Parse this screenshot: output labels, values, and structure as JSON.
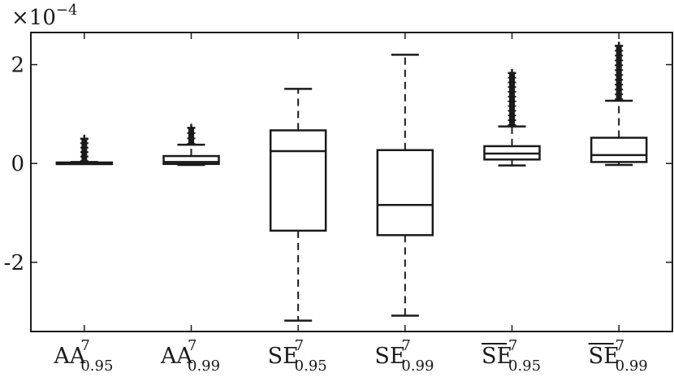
{
  "chart_data": {
    "type": "box",
    "scale_label": "×10",
    "scale_exponent": "−4",
    "ylim": [
      -3.4,
      2.65
    ],
    "yticks": [
      {
        "value": 2,
        "label": "2"
      },
      {
        "value": 0,
        "label": "0"
      },
      {
        "value": -2,
        "label": "-2"
      }
    ],
    "categories": [
      {
        "base": "AA",
        "sup": "7",
        "sub": "0.95",
        "overline": false
      },
      {
        "base": "AA",
        "sup": "7",
        "sub": "0.99",
        "overline": false
      },
      {
        "base": "SE",
        "sup": "7",
        "sub": "0.95",
        "overline": false
      },
      {
        "base": "SE",
        "sup": "7",
        "sub": "0.99",
        "overline": false
      },
      {
        "base": "SE",
        "sup": "7",
        "sub": "0.95",
        "overline": true
      },
      {
        "base": "SE",
        "sup": "7",
        "sub": "0.99",
        "overline": true
      }
    ],
    "boxes": [
      {
        "whisker_low": 0.0,
        "q1": 0.0,
        "median": 0.01,
        "q3": 0.02,
        "whisker_high": 0.03,
        "outlier_low": 0.05,
        "outlier_high": 0.5
      },
      {
        "whisker_low": -0.03,
        "q1": -0.01,
        "median": 0.03,
        "q3": 0.15,
        "whisker_high": 0.38,
        "outlier_low": 0.4,
        "outlier_high": 0.72
      },
      {
        "whisker_low": -3.18,
        "q1": -1.36,
        "median": 0.25,
        "q3": 0.67,
        "whisker_high": 1.51,
        "outlier_low": null,
        "outlier_high": null
      },
      {
        "whisker_low": -3.08,
        "q1": -1.45,
        "median": -0.84,
        "q3": 0.27,
        "whisker_high": 2.2,
        "outlier_low": null,
        "outlier_high": null
      },
      {
        "whisker_low": -0.04,
        "q1": 0.08,
        "median": 0.2,
        "q3": 0.35,
        "whisker_high": 0.75,
        "outlier_low": 0.78,
        "outlier_high": 1.83
      },
      {
        "whisker_low": -0.03,
        "q1": 0.03,
        "median": 0.17,
        "q3": 0.52,
        "whisker_high": 1.27,
        "outlier_low": 1.3,
        "outlier_high": 2.38
      }
    ],
    "grid": false,
    "legend": "none"
  }
}
